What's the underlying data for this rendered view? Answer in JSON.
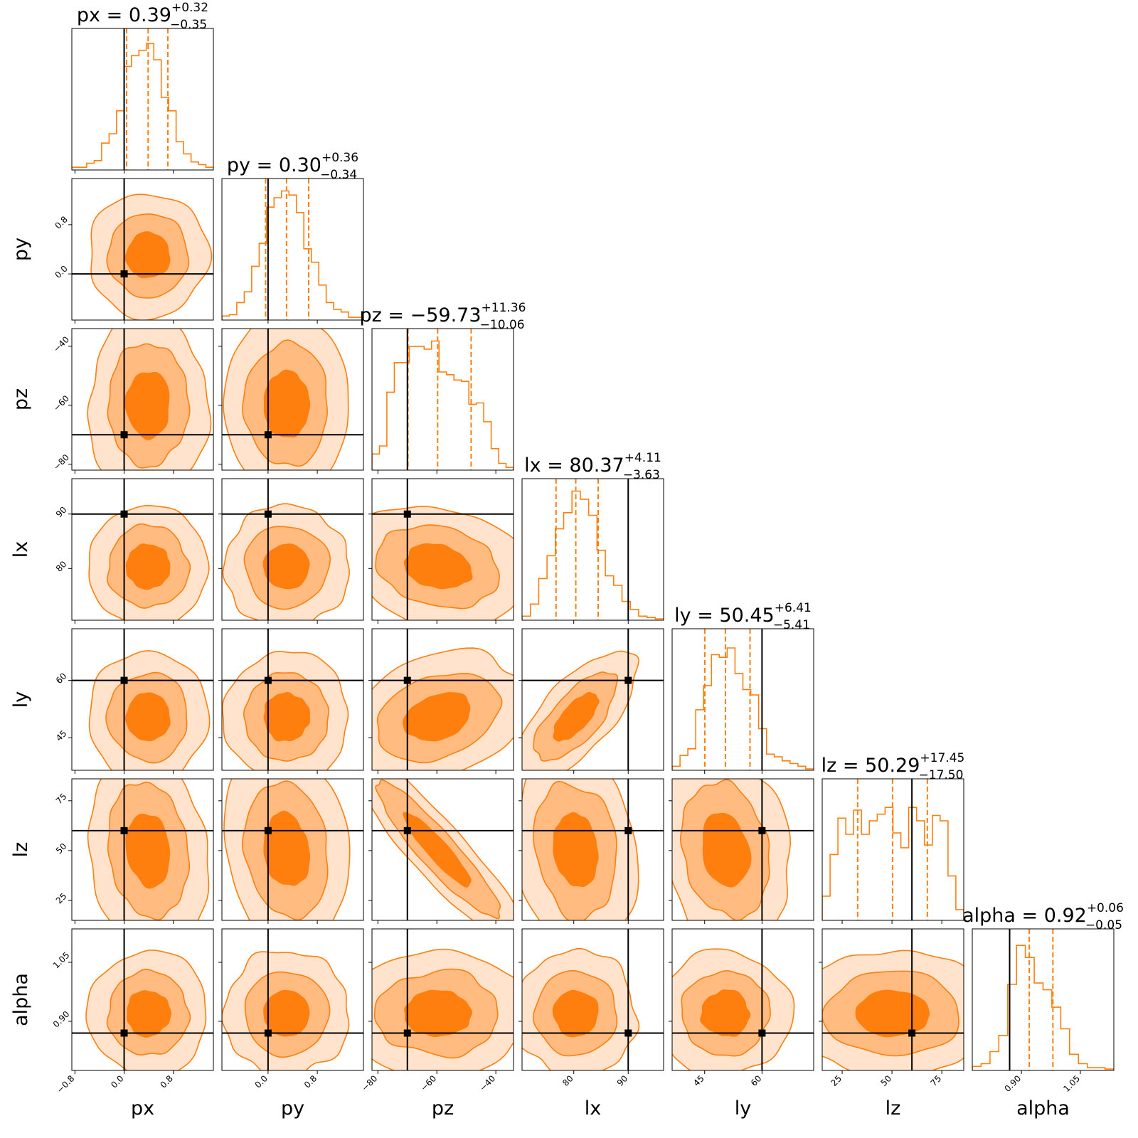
{
  "chart_data": {
    "type": "corner",
    "title": "",
    "colors": {
      "accent": "#ff7f0e",
      "fill_inner": "#ff7f0e",
      "fill_mid": "#ffbb80",
      "fill_outer": "#ffe3cc",
      "truth": "#000000"
    },
    "parameters": [
      {
        "name": "px",
        "axis_label": "px",
        "range": [
          -0.85,
          1.45
        ],
        "ticks": [
          -0.8,
          0.0,
          0.8
        ],
        "tick_labels": [
          "−0.8",
          "0.0",
          "0.8"
        ],
        "truth": 0.0,
        "median": 0.39,
        "plus": 0.32,
        "minus": 0.35,
        "title_main": "px = 0.39",
        "title_sup": "+0.32",
        "title_sub": "−0.35",
        "hist": [
          0.02,
          0.02,
          0.05,
          0.07,
          0.2,
          0.27,
          0.44,
          0.77,
          0.85,
          0.89,
          0.94,
          0.82,
          0.54,
          0.44,
          0.21,
          0.12,
          0.06,
          0.04,
          0.02
        ]
      },
      {
        "name": "py",
        "axis_label": "py",
        "range": [
          -0.75,
          1.55
        ],
        "ticks": [
          0.0,
          0.8
        ],
        "tick_labels": [
          "0.0",
          "0.8"
        ],
        "truth": 0.0,
        "median": 0.3,
        "plus": 0.36,
        "minus": 0.34,
        "title_main": "py = 0.30",
        "title_sup": "+0.36",
        "title_sub": "−0.34",
        "hist": [
          0.03,
          0.04,
          0.13,
          0.21,
          0.4,
          0.57,
          0.84,
          0.91,
          0.96,
          0.93,
          0.8,
          0.53,
          0.43,
          0.26,
          0.13,
          0.08,
          0.06,
          0.02,
          0.02
        ]
      },
      {
        "name": "pz",
        "axis_label": "pz",
        "range": [
          -82,
          -34
        ],
        "ticks": [
          -80,
          -60,
          -40
        ],
        "tick_labels": [
          "−80",
          "−60",
          "−40"
        ],
        "truth": -70,
        "median": -59.73,
        "plus": 11.36,
        "minus": 10.06,
        "title_main": "pz = −59.73",
        "title_sup": "+11.36",
        "title_sub": "−10.06",
        "hist": [
          0.12,
          0.18,
          0.58,
          0.8,
          0.8,
          0.92,
          0.92,
          0.9,
          0.96,
          0.73,
          0.71,
          0.67,
          0.66,
          0.49,
          0.5,
          0.36,
          0.16,
          0.05,
          0.02
        ]
      },
      {
        "name": "lx",
        "axis_label": "lx",
        "range": [
          70.5,
          96.5
        ],
        "ticks": [
          80,
          90
        ],
        "tick_labels": [
          "80",
          "90"
        ],
        "truth": 90,
        "median": 80.37,
        "plus": 4.11,
        "minus": 3.63,
        "title_main": "lx = 80.37",
        "title_sup": "+4.11",
        "title_sub": "−3.63",
        "hist": [
          0.03,
          0.12,
          0.31,
          0.48,
          0.68,
          0.8,
          0.96,
          0.9,
          0.78,
          0.52,
          0.33,
          0.26,
          0.14,
          0.08,
          0.03,
          0.02,
          0.01
        ]
      },
      {
        "name": "ly",
        "axis_label": "ly",
        "range": [
          36.5,
          73.5
        ],
        "ticks": [
          45,
          60
        ],
        "tick_labels": [
          "45",
          "60"
        ],
        "truth": 60,
        "median": 50.45,
        "plus": 6.41,
        "minus": 5.41,
        "title_main": "ly = 50.45",
        "title_sup": "+6.41",
        "title_sub": "−5.41",
        "hist": [
          0.03,
          0.11,
          0.16,
          0.45,
          0.63,
          0.86,
          0.84,
          0.91,
          0.72,
          0.6,
          0.56,
          0.31,
          0.12,
          0.1,
          0.07,
          0.05,
          0.03,
          0.01
        ]
      },
      {
        "name": "lz",
        "axis_label": "lz",
        "range": [
          15,
          86
        ],
        "ticks": [
          25,
          50,
          75
        ],
        "tick_labels": [
          "25",
          "50",
          "75"
        ],
        "truth": 60,
        "median": 50.29,
        "plus": 17.45,
        "minus": 17.5,
        "title_main": "lz = 50.29",
        "title_sup": "+17.45",
        "title_sub": "−17.50",
        "hist": [
          0.18,
          0.49,
          0.76,
          0.64,
          0.82,
          0.64,
          0.74,
          0.79,
          0.84,
          0.65,
          0.54,
          0.84,
          0.74,
          0.56,
          0.78,
          0.74,
          0.33,
          0.08
        ]
      },
      {
        "name": "alpha",
        "axis_label": "alpha",
        "range": [
          0.775,
          1.135
        ],
        "ticks": [
          0.9,
          1.05
        ],
        "tick_labels": [
          "0.90",
          "1.05"
        ],
        "truth": 0.87,
        "median": 0.92,
        "plus": 0.06,
        "minus": 0.05,
        "title_main": "alpha = 0.92",
        "title_sup": "+0.06",
        "title_sub": "−0.05",
        "hist": [
          0.03,
          0.05,
          0.14,
          0.26,
          0.64,
          0.93,
          0.84,
          0.65,
          0.6,
          0.47,
          0.31,
          0.12,
          0.05,
          0.02,
          0.02,
          0.01
        ]
      }
    ]
  }
}
